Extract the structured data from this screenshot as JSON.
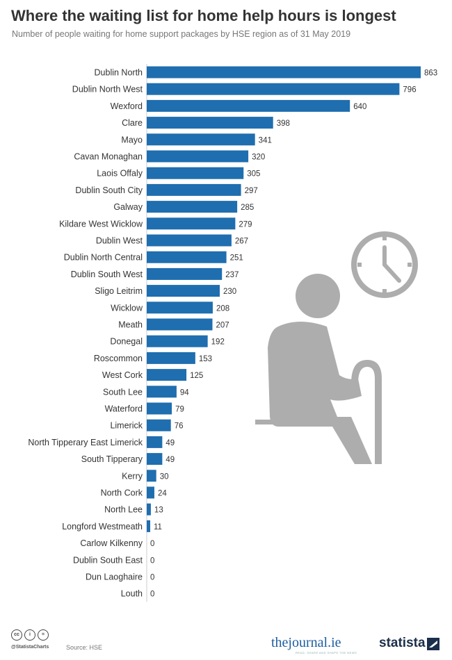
{
  "title": "Where the waiting list for home help hours is longest",
  "subtitle": "Number of people waiting for home support packages by HSE region as of 31 May 2019",
  "colors": {
    "bar": "#1f6eaf",
    "illustration": "#adadad",
    "text": "#333333"
  },
  "icons": [
    "elderly-person-illustration",
    "clock-icon",
    "walking-cane-icon",
    "cc-license-icon",
    "statista-logo-icon"
  ],
  "chart_data": {
    "type": "bar",
    "orientation": "horizontal",
    "title": "Where the waiting list for home help hours is longest",
    "subtitle": "Number of people waiting for home support packages by HSE region as of 31 May 2019",
    "xlabel": "",
    "ylabel": "",
    "xlim": [
      0,
      863
    ],
    "grid": false,
    "legend": "none",
    "categories": [
      "Dublin North",
      "Dublin North West",
      "Wexford",
      "Clare",
      "Mayo",
      "Cavan Monaghan",
      "Laois Offaly",
      "Dublin South City",
      "Galway",
      "Kildare West Wicklow",
      "Dublin West",
      "Dublin North Central",
      "Dublin South West",
      "Sligo Leitrim",
      "Wicklow",
      "Meath",
      "Donegal",
      "Roscommon",
      "West Cork",
      "South Lee",
      "Waterford",
      "Limerick",
      "North Tipperary East Limerick",
      "South Tipperary",
      "Kerry",
      "North Cork",
      "North Lee",
      "Longford Westmeath",
      "Carlow Kilkenny",
      "Dublin South East",
      "Dun Laoghaire",
      "Louth"
    ],
    "values": [
      863,
      796,
      640,
      398,
      341,
      320,
      305,
      297,
      285,
      279,
      267,
      251,
      237,
      230,
      208,
      207,
      192,
      153,
      125,
      94,
      79,
      76,
      49,
      49,
      30,
      24,
      13,
      11,
      0,
      0,
      0,
      0
    ]
  },
  "footer": {
    "cc_icons": [
      "cc",
      "i",
      "="
    ],
    "handle": "@StatistaCharts",
    "source": "Source: HSE",
    "journal_logo": "thejournal.ie",
    "journal_tag": "READ, SHARE AND SHAPE THE NEWS",
    "statista_logo": "statista"
  }
}
